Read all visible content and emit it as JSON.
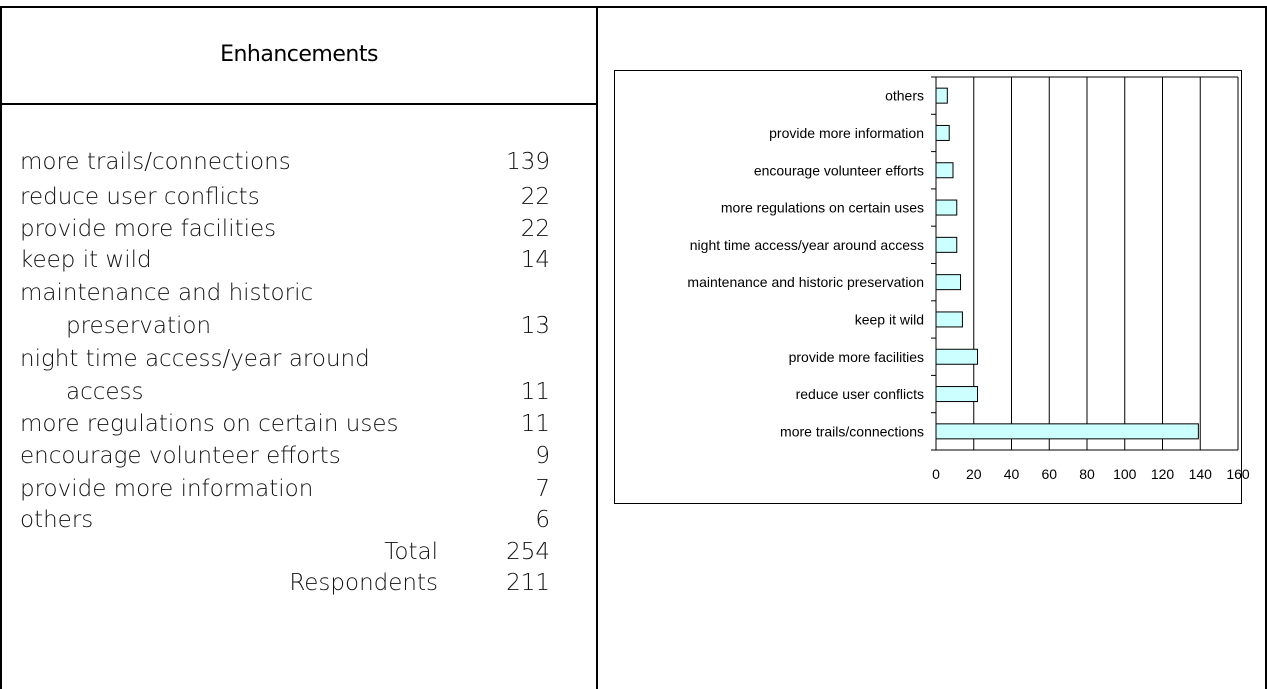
{
  "table": {
    "heading": "Enhancements",
    "rows": [
      {
        "label": "more trails/connections",
        "value": "139"
      },
      {
        "label": "reduce user conflicts",
        "value": "22"
      },
      {
        "label": "provide more facilities",
        "value": "22"
      },
      {
        "label": "keep it wild",
        "value": "14"
      },
      {
        "label": "maintenance and historic",
        "label2": "preservation",
        "value": "13"
      },
      {
        "label": "night time access/year around",
        "label2": "access",
        "value": "11"
      },
      {
        "label": "more regulations on certain uses",
        "value": "11"
      },
      {
        "label": "encourage volunteer efforts",
        "value": "9"
      },
      {
        "label": "provide more information",
        "value": "7"
      },
      {
        "label": "others",
        "value": "6"
      }
    ],
    "total_label": "Total",
    "total_value": "254",
    "respondents_label": "Respondents",
    "respondents_value": "211"
  },
  "chart_data": {
    "type": "bar",
    "orientation": "horizontal",
    "categories": [
      "more trails/connections",
      "reduce user conflicts",
      "provide more facilities",
      "keep it wild",
      "maintenance and historic preservation",
      "night time access/year around access",
      "more regulations on certain uses",
      "encourage volunteer efforts",
      "provide more information",
      "others"
    ],
    "values": [
      139,
      22,
      22,
      14,
      13,
      11,
      11,
      9,
      7,
      6
    ],
    "xlim": [
      0,
      160
    ],
    "xticks": [
      "0",
      "20",
      "40",
      "60",
      "80",
      "100",
      "120",
      "140",
      "160"
    ],
    "grid": true,
    "bar_color": "#ccffff",
    "legend": "none"
  }
}
